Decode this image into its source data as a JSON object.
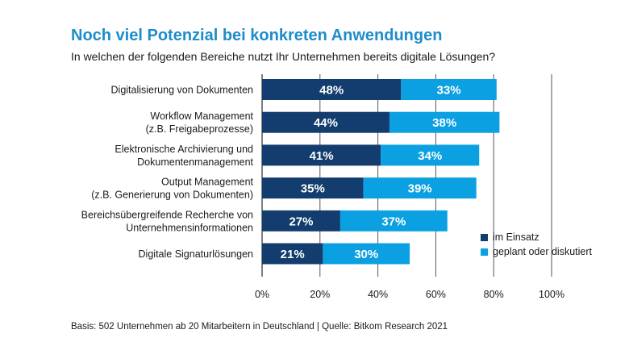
{
  "colors": {
    "title": "#1e8ccd",
    "in_use": "#123d6e",
    "planned": "#0aa0e2",
    "grid": "#555555"
  },
  "footer": {
    "source": "Basis: 502 Unternehmen ab 20 Mitarbeitern in Deutschland | Quelle: Bitkom Research 2021"
  },
  "chart_data": {
    "type": "bar",
    "orientation": "horizontal",
    "stacked": true,
    "title": "Noch viel Potenzial bei konkreten Anwendungen",
    "subtitle": "In welchen der folgenden Bereiche nutzt Ihr Unternehmen bereits digitale Lösungen?",
    "categories": [
      [
        "Digitalisierung von Dokumenten"
      ],
      [
        "Workflow Management",
        "(z.B. Freigabeprozesse)"
      ],
      [
        "Elektronische Archivierung und",
        "Dokumentenmanagement"
      ],
      [
        "Output Management",
        "(z.B. Generierung von Dokumenten)"
      ],
      [
        "Bereichsübergreifende Recherche von",
        "Unternehmensinformationen"
      ],
      [
        "Digitale Signaturlösungen"
      ]
    ],
    "series": [
      {
        "name": "im Einsatz",
        "values": [
          48,
          44,
          41,
          35,
          27,
          21
        ],
        "labels": [
          "48%",
          "44%",
          "41%",
          "35%",
          "27%",
          "21%"
        ]
      },
      {
        "name": "geplant oder diskutiert",
        "values": [
          33,
          38,
          34,
          39,
          37,
          30
        ],
        "labels": [
          "33%",
          "38%",
          "34%",
          "39%",
          "37%",
          "30%"
        ]
      }
    ],
    "xlim": [
      0,
      100
    ],
    "xticks": [
      0,
      20,
      40,
      60,
      80,
      100
    ],
    "xtick_labels": [
      "0%",
      "20%",
      "40%",
      "60%",
      "80%",
      "100%"
    ],
    "grid": true,
    "legend_position": "right"
  }
}
